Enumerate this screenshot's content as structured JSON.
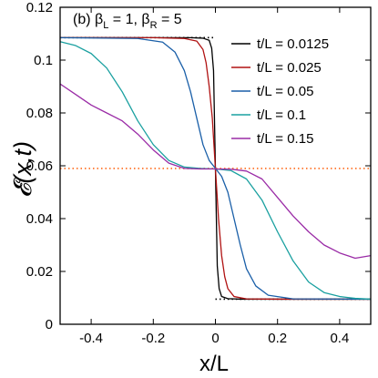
{
  "chart_data": {
    "type": "line",
    "title": "(b) βL = 1, βR = 5",
    "title_parts": {
      "prefix": "(b) β",
      "sub_l": "L",
      "mid": " = 1, β",
      "sub_r": "R",
      "suffix": " = 5"
    },
    "xlabel": "x/L",
    "ylabel": "𝓔(x,t)",
    "xlim": [
      -0.5,
      0.5
    ],
    "ylim": [
      0,
      0.12
    ],
    "x_ticks": [
      "-0.4",
      "-0.2",
      "0",
      "0.2",
      "0.4"
    ],
    "y_ticks": [
      "0",
      "0.02",
      "0.04",
      "0.06",
      "0.08",
      "0.1",
      "0.12"
    ],
    "grid": false,
    "legend_position": "top-right",
    "reference_lines": [
      {
        "kind": "dotted",
        "color": "#000000",
        "y": 0.1085,
        "x_range": [
          -0.5,
          0.0
        ]
      },
      {
        "kind": "dotted",
        "color": "#000000",
        "y": 0.0095,
        "x_range": [
          0.0,
          0.5
        ]
      },
      {
        "kind": "dotted",
        "color": "#ff6a1a",
        "y": 0.059,
        "x_range": [
          -0.5,
          0.5
        ]
      }
    ],
    "series": [
      {
        "name": "t/L = 0.0125",
        "color": "#000000",
        "x": [
          -0.5,
          -0.2,
          -0.08,
          -0.04,
          -0.02,
          -0.012,
          -0.006,
          0.0,
          0.006,
          0.012,
          0.02,
          0.04,
          0.08,
          0.2,
          0.5
        ],
        "y": [
          0.1085,
          0.1085,
          0.1085,
          0.1083,
          0.1075,
          0.1045,
          0.096,
          0.059,
          0.022,
          0.0135,
          0.0105,
          0.0097,
          0.0095,
          0.0095,
          0.0095
        ]
      },
      {
        "name": "t/L = 0.025",
        "color": "#b01212",
        "x": [
          -0.5,
          -0.2,
          -0.1,
          -0.06,
          -0.04,
          -0.03,
          -0.02,
          -0.01,
          0.0,
          0.01,
          0.02,
          0.03,
          0.04,
          0.06,
          0.1,
          0.2,
          0.5
        ],
        "y": [
          0.1085,
          0.1085,
          0.1082,
          0.1072,
          0.104,
          0.099,
          0.09,
          0.078,
          0.059,
          0.04,
          0.026,
          0.018,
          0.0135,
          0.0105,
          0.0096,
          0.0095,
          0.0095
        ]
      },
      {
        "name": "t/L = 0.05",
        "color": "#1a5fa8",
        "x": [
          -0.5,
          -0.25,
          -0.17,
          -0.13,
          -0.1,
          -0.08,
          -0.06,
          -0.04,
          -0.02,
          0.0,
          0.02,
          0.04,
          0.06,
          0.08,
          0.1,
          0.13,
          0.17,
          0.25,
          0.5
        ],
        "y": [
          0.1085,
          0.1082,
          0.1068,
          0.103,
          0.096,
          0.088,
          0.078,
          0.068,
          0.062,
          0.059,
          0.056,
          0.05,
          0.04,
          0.03,
          0.021,
          0.0145,
          0.011,
          0.0096,
          0.0095
        ]
      },
      {
        "name": "t/L = 0.1",
        "color": "#1aa0a0",
        "x": [
          -0.5,
          -0.45,
          -0.4,
          -0.35,
          -0.3,
          -0.25,
          -0.2,
          -0.15,
          -0.1,
          -0.05,
          0.0,
          0.05,
          0.1,
          0.15,
          0.2,
          0.25,
          0.3,
          0.35,
          0.4,
          0.45,
          0.5
        ],
        "y": [
          0.107,
          0.1055,
          0.1025,
          0.097,
          0.088,
          0.077,
          0.068,
          0.062,
          0.0595,
          0.059,
          0.0588,
          0.0582,
          0.055,
          0.047,
          0.035,
          0.024,
          0.016,
          0.012,
          0.0105,
          0.0098,
          0.0095
        ]
      },
      {
        "name": "t/L = 0.15",
        "color": "#9a2ba6",
        "x": [
          -0.5,
          -0.45,
          -0.4,
          -0.35,
          -0.3,
          -0.25,
          -0.2,
          -0.15,
          -0.1,
          -0.05,
          0.0,
          0.05,
          0.1,
          0.15,
          0.2,
          0.25,
          0.3,
          0.35,
          0.4,
          0.45,
          0.5
        ],
        "y": [
          0.091,
          0.087,
          0.083,
          0.08,
          0.077,
          0.072,
          0.066,
          0.061,
          0.059,
          0.0588,
          0.0588,
          0.0587,
          0.058,
          0.055,
          0.048,
          0.041,
          0.035,
          0.03,
          0.027,
          0.025,
          0.026
        ]
      }
    ]
  }
}
